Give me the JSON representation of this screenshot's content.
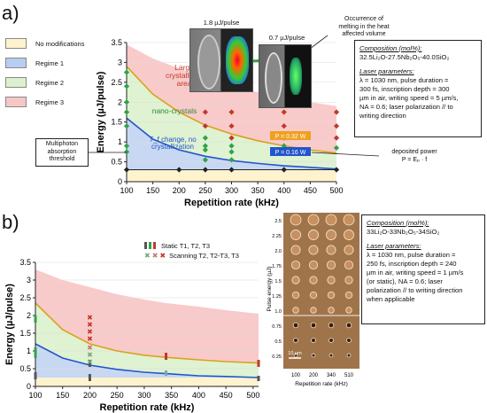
{
  "panel_a": {
    "label": "a)",
    "legend": [
      {
        "label": "No modifications",
        "color": "#fdf3cf"
      },
      {
        "label": "Regime 1",
        "color": "#b8cdf0"
      },
      {
        "label": "Regime 2",
        "color": "#dcf1cd"
      },
      {
        "label": "Regime 3",
        "color": "#f7c6c6"
      }
    ],
    "composition_title": "Composition (mol%):",
    "composition": "32.5Li₂O-27.5Nb₂O₅-40.0SiO₂",
    "laser_title": "Laser parameters:",
    "laser_lines": [
      "λ = 1030 nm, pulse duration =",
      "300 fs, inscription depth = 300",
      "µm in air, writing speed = 5 µm/s,",
      "NA = 0.6; laser polarization // to",
      "writing direction"
    ],
    "micro_label_1": "1.8 µJ/pulse",
    "micro_label_2": "0.7 µJ/pulse",
    "melting_note": [
      "Occurrence of",
      "melting in the heat",
      "affected volume"
    ],
    "multiphoton_note": [
      "Multiphoton",
      "absorption",
      "threshold"
    ],
    "deposited_note": [
      "deposited power",
      "P = Eₚ · f"
    ],
    "region_large": [
      "Large",
      "crystallized",
      "area"
    ],
    "region_nano": "nano-crystals",
    "region_tf": [
      "T_f change, no",
      "crystallization"
    ],
    "power_032": "P = 0.32 W",
    "power_016": "P = 0.16 W"
  },
  "panel_b": {
    "label": "b)",
    "legend_static": "Static T1, T2, T3",
    "legend_scanning": "Scanning T2, T2-T3, T3",
    "composition_title": "Composition (mol%):",
    "composition": "33Li₂O-33Nb₂O₅-34SiO₂",
    "laser_title": "Laser parameters:",
    "laser_lines": [
      "λ = 1030 nm, pulse duration =",
      "250 fs, inscription depth = 240",
      "µm in air, writing speed = 1 µm/s",
      "(or static), NA = 0.6; laser",
      "polarization // to writing direction",
      "when applicable"
    ],
    "micro_ylabel": "Pulse energy (µJ)",
    "micro_xlabel": "Repetition rate (kHz)",
    "micro_yticks": [
      "2.5",
      "2.25",
      "2.0",
      "1.75",
      "1.5",
      "1.25",
      "1.0",
      "0.75",
      "0.5",
      "0.25"
    ],
    "micro_xticks": [
      "100",
      "200",
      "340",
      "510"
    ],
    "scale_bar": "10 µm"
  },
  "chart_data": [
    {
      "type": "area",
      "panel": "a",
      "xlabel": "Repetition rate (kHz)",
      "ylabel": "Energy (µJ/pulse)",
      "xlim": [
        100,
        500
      ],
      "ylim": [
        0,
        3.5
      ],
      "xticks": [
        100,
        150,
        200,
        250,
        300,
        350,
        400,
        450,
        500
      ],
      "yticks": [
        0,
        0.5,
        1,
        1.5,
        2,
        2.5,
        3,
        3.5
      ],
      "boundaries": [
        {
          "name": "multiphoton threshold",
          "x": [
            100,
            500
          ],
          "y": [
            0.3,
            0.3
          ]
        },
        {
          "name": "P = 0.16 W",
          "x": [
            100,
            150,
            200,
            250,
            300,
            350,
            400,
            450,
            500
          ],
          "y": [
            1.6,
            1.07,
            0.8,
            0.64,
            0.53,
            0.46,
            0.4,
            0.36,
            0.32
          ]
        },
        {
          "name": "P = 0.32 W",
          "x": [
            100,
            150,
            200,
            250,
            300,
            350,
            400,
            450,
            500
          ],
          "y": [
            2.9,
            2.2,
            1.75,
            1.42,
            1.2,
            1.03,
            0.9,
            0.8,
            0.72
          ]
        },
        {
          "name": "upper",
          "x": [
            100,
            150,
            200,
            250,
            300,
            350,
            400,
            450,
            500
          ],
          "y": [
            3.45,
            3.1,
            2.85,
            2.6,
            2.4,
            2.25,
            2.1,
            2.0,
            1.9
          ]
        }
      ],
      "points": [
        {
          "x": 100,
          "y": 2.75,
          "c": "#2fa34a"
        },
        {
          "x": 100,
          "y": 2.4,
          "c": "#2fa34a"
        },
        {
          "x": 100,
          "y": 2.0,
          "c": "#2fa34a"
        },
        {
          "x": 100,
          "y": 1.75,
          "c": "#2fa34a"
        },
        {
          "x": 100,
          "y": 1.4,
          "c": "#2fa34a"
        },
        {
          "x": 100,
          "y": 0.9,
          "c": "#2fa34a"
        },
        {
          "x": 100,
          "y": 0.75,
          "c": "#2fa34a"
        },
        {
          "x": 100,
          "y": 0.3,
          "c": "#222"
        },
        {
          "x": 200,
          "y": 0.3,
          "c": "#222"
        },
        {
          "x": 250,
          "y": 1.75,
          "c": "#c0392b"
        },
        {
          "x": 250,
          "y": 1.4,
          "c": "#c0392b"
        },
        {
          "x": 250,
          "y": 1.1,
          "c": "#2fa34a"
        },
        {
          "x": 250,
          "y": 0.9,
          "c": "#2fa34a"
        },
        {
          "x": 250,
          "y": 0.8,
          "c": "#2fa34a"
        },
        {
          "x": 250,
          "y": 0.55,
          "c": "#2fa34a"
        },
        {
          "x": 250,
          "y": 0.3,
          "c": "#222"
        },
        {
          "x": 300,
          "y": 1.75,
          "c": "#c0392b"
        },
        {
          "x": 300,
          "y": 1.4,
          "c": "#c0392b"
        },
        {
          "x": 300,
          "y": 1.1,
          "c": "#c0392b"
        },
        {
          "x": 300,
          "y": 0.9,
          "c": "#2fa34a"
        },
        {
          "x": 300,
          "y": 0.75,
          "c": "#2fa34a"
        },
        {
          "x": 300,
          "y": 0.55,
          "c": "#2fa34a"
        },
        {
          "x": 300,
          "y": 0.3,
          "c": "#222"
        },
        {
          "x": 400,
          "y": 2.1,
          "c": "#c0392b"
        },
        {
          "x": 400,
          "y": 1.75,
          "c": "#c0392b"
        },
        {
          "x": 400,
          "y": 1.4,
          "c": "#c0392b"
        },
        {
          "x": 400,
          "y": 1.1,
          "c": "#c0392b"
        },
        {
          "x": 400,
          "y": 0.9,
          "c": "#2fa34a"
        },
        {
          "x": 400,
          "y": 0.3,
          "c": "#222"
        },
        {
          "x": 500,
          "y": 1.75,
          "c": "#c0392b"
        },
        {
          "x": 500,
          "y": 1.4,
          "c": "#c0392b"
        },
        {
          "x": 500,
          "y": 1.1,
          "c": "#c0392b"
        },
        {
          "x": 500,
          "y": 0.85,
          "c": "#2fa34a"
        },
        {
          "x": 500,
          "y": 0.3,
          "c": "#222"
        }
      ]
    },
    {
      "type": "area",
      "panel": "b",
      "xlabel": "Repetition rate (kHz)",
      "ylabel": "Energy (µJ/pulse)",
      "xlim": [
        100,
        510
      ],
      "ylim": [
        0,
        3.5
      ],
      "xticks": [
        100,
        150,
        200,
        250,
        300,
        350,
        400,
        450,
        500
      ],
      "yticks": [
        0,
        0.5,
        1,
        1.5,
        2,
        2.5,
        3,
        3.5
      ],
      "boundaries": [
        {
          "name": "lower",
          "x": [
            100,
            200,
            340,
            510
          ],
          "y": [
            0.25,
            0.25,
            0.25,
            0.25
          ]
        },
        {
          "name": "T1-T2",
          "x": [
            100,
            150,
            200,
            250,
            300,
            340,
            400,
            450,
            510
          ],
          "y": [
            1.2,
            0.8,
            0.6,
            0.48,
            0.4,
            0.36,
            0.3,
            0.28,
            0.25
          ]
        },
        {
          "name": "T2-T3",
          "x": [
            100,
            150,
            200,
            250,
            300,
            340,
            400,
            450,
            510
          ],
          "y": [
            2.35,
            1.6,
            1.2,
            1.0,
            0.88,
            0.82,
            0.75,
            0.7,
            0.66
          ]
        },
        {
          "name": "upper",
          "x": [
            100,
            150,
            200,
            250,
            300,
            340,
            400,
            450,
            510
          ],
          "y": [
            3.3,
            3.0,
            2.8,
            2.6,
            2.45,
            2.35,
            2.25,
            2.15,
            2.05
          ]
        }
      ],
      "static_bars": [
        {
          "x": 100,
          "y0": 0.2,
          "y1": 0.4,
          "c": "#555"
        },
        {
          "x": 100,
          "y0": 0.8,
          "y1": 1.1,
          "c": "#2fa34a"
        },
        {
          "x": 100,
          "y0": 1.8,
          "y1": 2.0,
          "c": "#2fa34a"
        },
        {
          "x": 200,
          "y0": 0.15,
          "y1": 0.35,
          "c": "#555"
        },
        {
          "x": 200,
          "y0": 0.55,
          "y1": 0.75,
          "c": "#555"
        },
        {
          "x": 340,
          "y0": 0.3,
          "y1": 0.45,
          "c": "#7aa"
        },
        {
          "x": 340,
          "y0": 0.75,
          "y1": 0.95,
          "c": "#c0392b"
        },
        {
          "x": 510,
          "y0": 0.15,
          "y1": 0.3,
          "c": "#555"
        },
        {
          "x": 510,
          "y0": 0.55,
          "y1": 0.75,
          "c": "#c0392b"
        }
      ],
      "scan_points": [
        {
          "x": 200,
          "y": 1.95,
          "c": "#c0392b"
        },
        {
          "x": 200,
          "y": 1.75,
          "c": "#c0392b"
        },
        {
          "x": 200,
          "y": 1.55,
          "c": "#c0392b"
        },
        {
          "x": 200,
          "y": 1.35,
          "c": "#c0392b"
        },
        {
          "x": 200,
          "y": 1.1,
          "c": "#c77"
        },
        {
          "x": 200,
          "y": 0.9,
          "c": "#7a7"
        },
        {
          "x": 200,
          "y": 0.7,
          "c": "#7a7"
        }
      ]
    }
  ]
}
